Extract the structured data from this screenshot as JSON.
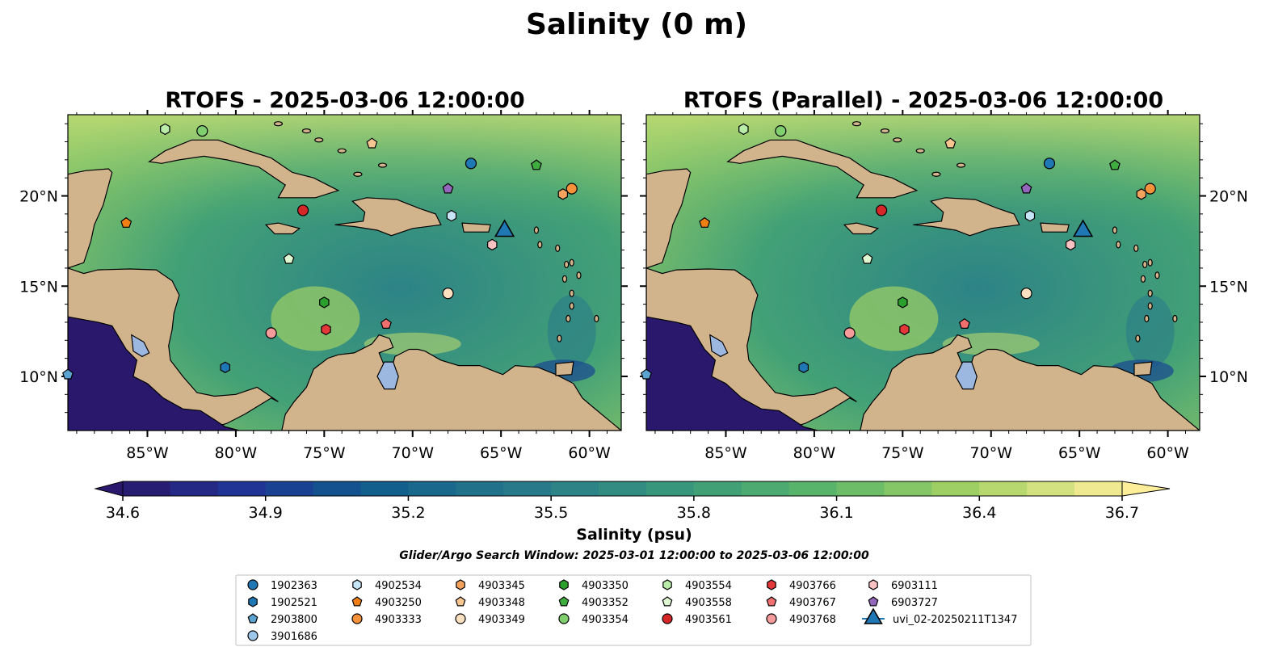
{
  "figure": {
    "title": "Salinity (0 m)",
    "search_window": "Glider/Argo Search Window: 2025-03-01 12:00:00 to 2025-03-06 12:00:00"
  },
  "chart_data": {
    "type": "heatmap",
    "variable": "Salinity",
    "units": "psu",
    "map": {
      "lon_range": [
        -89.5,
        -58.2
      ],
      "lat_range": [
        7.0,
        24.5
      ],
      "land_color": "#d2b48c",
      "pacific_color": "#29186b"
    },
    "panels": [
      {
        "title": "RTOFS - 2025-03-06 12:00:00",
        "side": "left",
        "lat_ticks_side": "left"
      },
      {
        "title": "RTOFS (Parallel) - 2025-03-06 12:00:00",
        "side": "right",
        "lat_ticks_side": "right"
      }
    ],
    "x_ticks": [
      "85°W",
      "80°W",
      "75°W",
      "70°W",
      "65°W",
      "60°W"
    ],
    "x_tick_values": [
      -85,
      -80,
      -75,
      -70,
      -65,
      -60
    ],
    "y_ticks": [
      "10°N",
      "15°N",
      "20°N"
    ],
    "y_tick_values": [
      10,
      15,
      20
    ],
    "colorbar": {
      "label": "Salinity (psu)",
      "min": 34.6,
      "max": 36.7,
      "step": 0.1,
      "ticks": [
        "34.6",
        "34.9",
        "35.2",
        "35.5",
        "35.8",
        "36.1",
        "36.4",
        "36.7"
      ],
      "extend": "both",
      "colormap": "haline"
    },
    "platforms": [
      {
        "id": "1902363",
        "marker": "circle",
        "color": "#1f77b4",
        "lon": -66.7,
        "lat": 21.8
      },
      {
        "id": "1902521",
        "marker": "hexagon",
        "color": "#1f77b4",
        "lon": -80.6,
        "lat": 10.5
      },
      {
        "id": "2903800",
        "marker": "pentagon",
        "color": "#5ba3d0",
        "lon": -89.5,
        "lat": 10.1
      },
      {
        "id": "3901686",
        "marker": "circle",
        "color": "#9ec6e8",
        "lon": null,
        "lat": null
      },
      {
        "id": "4902534",
        "marker": "hexagon",
        "color": "#c6e6f8",
        "lon": -67.8,
        "lat": 18.9
      },
      {
        "id": "4903250",
        "marker": "pentagon",
        "color": "#f07f14",
        "lon": -86.2,
        "lat": 18.5
      },
      {
        "id": "4903333",
        "marker": "circle",
        "color": "#f7913a",
        "lon": -61.0,
        "lat": 20.4
      },
      {
        "id": "4903345",
        "marker": "hexagon",
        "color": "#f4a35e",
        "lon": -61.5,
        "lat": 20.1
      },
      {
        "id": "4903348",
        "marker": "pentagon",
        "color": "#f8c690",
        "lon": -72.3,
        "lat": 22.9
      },
      {
        "id": "4903349",
        "marker": "circle",
        "color": "#fde0c0",
        "lon": -68.0,
        "lat": 14.6
      },
      {
        "id": "4903350",
        "marker": "hexagon",
        "color": "#2ca02c",
        "lon": -75.0,
        "lat": 14.1
      },
      {
        "id": "4903352",
        "marker": "pentagon",
        "color": "#3fae3f",
        "lon": -63.0,
        "lat": 21.7
      },
      {
        "id": "4903354",
        "marker": "circle",
        "color": "#7fcf6f",
        "lon": -81.9,
        "lat": 23.6
      },
      {
        "id": "4903554",
        "marker": "hexagon",
        "color": "#b8eca8",
        "lon": -84.0,
        "lat": 23.7
      },
      {
        "id": "4903558",
        "marker": "pentagon",
        "color": "#dff8d2",
        "lon": -77.0,
        "lat": 16.5
      },
      {
        "id": "4903561",
        "marker": "circle",
        "color": "#d62728",
        "lon": -76.2,
        "lat": 19.2
      },
      {
        "id": "4903766",
        "marker": "hexagon",
        "color": "#e3373a",
        "lon": -74.9,
        "lat": 12.6
      },
      {
        "id": "4903767",
        "marker": "pentagon",
        "color": "#f07070",
        "lon": -71.5,
        "lat": 12.9
      },
      {
        "id": "4903768",
        "marker": "circle",
        "color": "#f59b9b",
        "lon": -78.0,
        "lat": 12.4
      },
      {
        "id": "6903111",
        "marker": "hexagon",
        "color": "#fac2c2",
        "lon": -65.5,
        "lat": 17.3
      },
      {
        "id": "6903727",
        "marker": "pentagon",
        "color": "#9467bd",
        "lon": -68.0,
        "lat": 20.4
      },
      {
        "id": "uvi_02-20250211T1347",
        "marker": "triangle",
        "color": "#1f77b4",
        "lon": -64.8,
        "lat": 18.2
      }
    ]
  }
}
